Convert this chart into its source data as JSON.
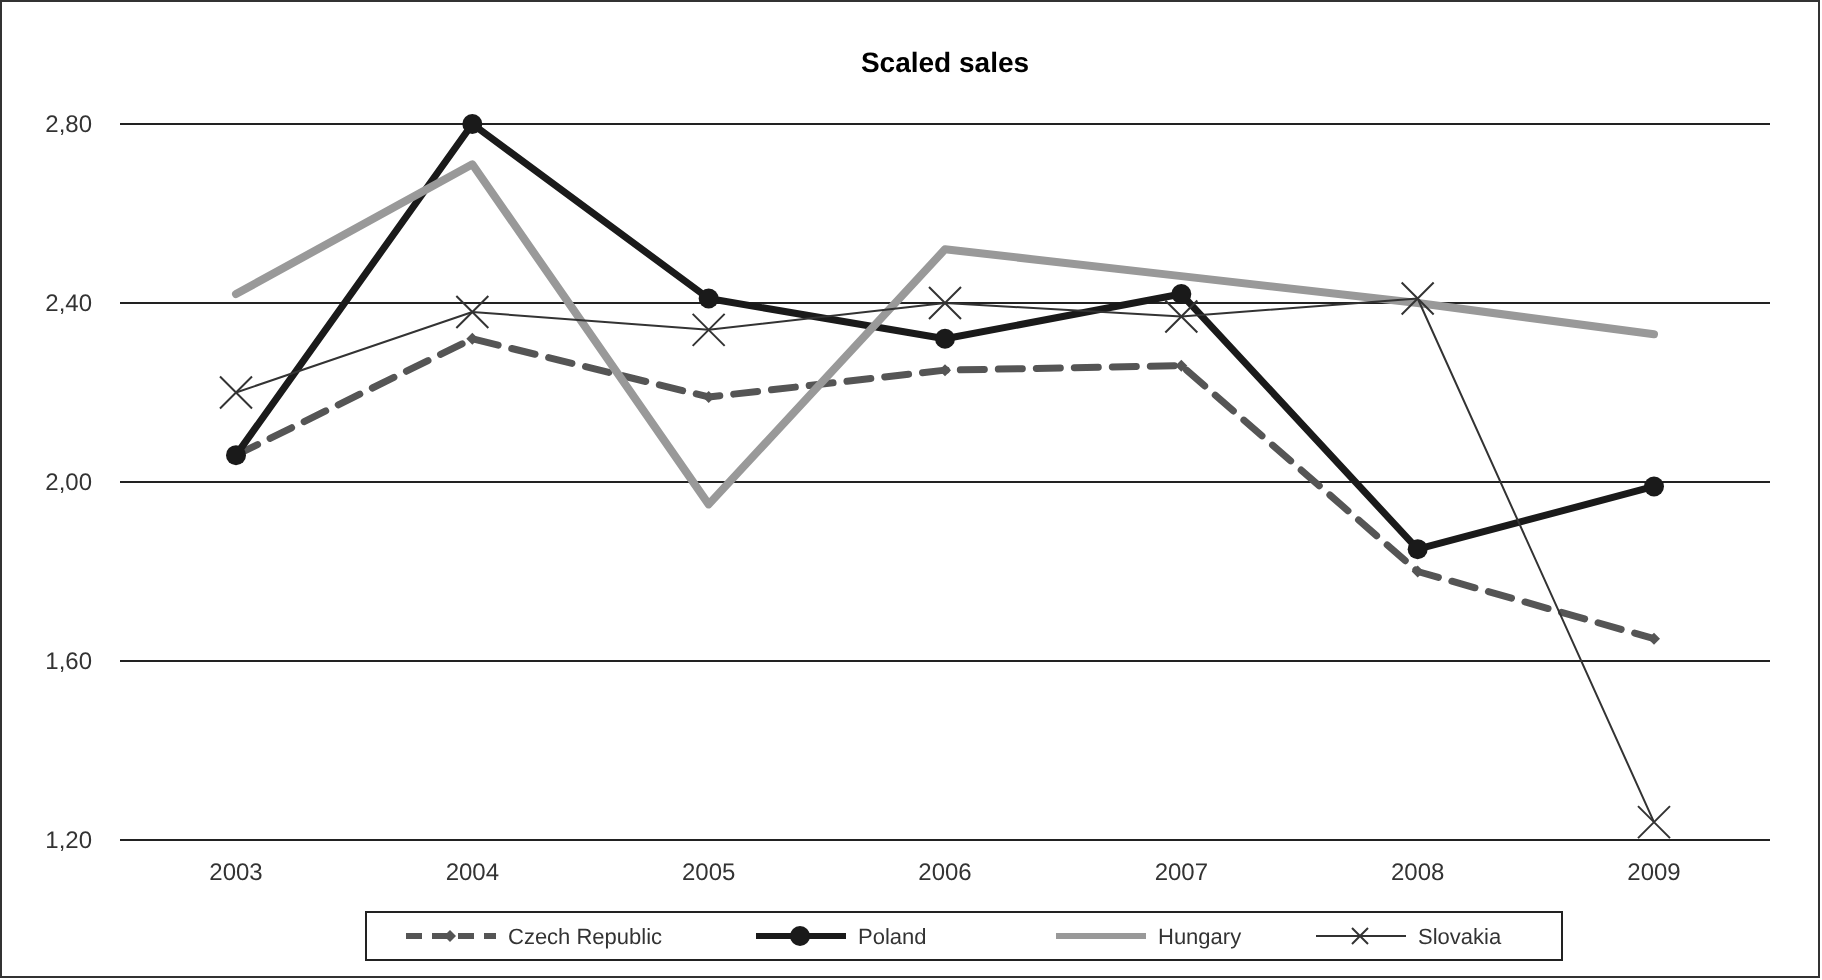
{
  "chart_data": {
    "type": "line",
    "title": "Scaled sales",
    "categories": [
      "2003",
      "2004",
      "2005",
      "2006",
      "2007",
      "2008",
      "2009"
    ],
    "series": [
      {
        "name": "Czech Republic",
        "color": "#555555",
        "line_style": "dashed",
        "marker": "diamond",
        "values": [
          2.06,
          2.32,
          2.19,
          2.25,
          2.26,
          1.8,
          1.65
        ]
      },
      {
        "name": "Poland",
        "color": "#1a1a1a",
        "line_style": "solid",
        "marker": "circle",
        "values": [
          2.06,
          2.8,
          2.41,
          2.32,
          2.42,
          1.85,
          1.99
        ]
      },
      {
        "name": "Hungary",
        "color": "#999999",
        "line_style": "solid",
        "marker": "none",
        "values": [
          2.42,
          2.71,
          1.95,
          2.52,
          2.46,
          2.4,
          2.33
        ]
      },
      {
        "name": "Slovakia",
        "color": "#333333",
        "line_style": "solid",
        "marker": "cross",
        "values": [
          2.2,
          2.38,
          2.34,
          2.4,
          2.37,
          2.41,
          1.24
        ]
      }
    ],
    "ylim": [
      1.2,
      2.8
    ],
    "yticks": [
      {
        "value": 1.2,
        "label": "1,20"
      },
      {
        "value": 1.6,
        "label": "1,60"
      },
      {
        "value": 2.0,
        "label": "2,00"
      },
      {
        "value": 2.4,
        "label": "2,40"
      },
      {
        "value": 2.8,
        "label": "2,80"
      }
    ],
    "grid": "y",
    "legend": "bottom"
  }
}
